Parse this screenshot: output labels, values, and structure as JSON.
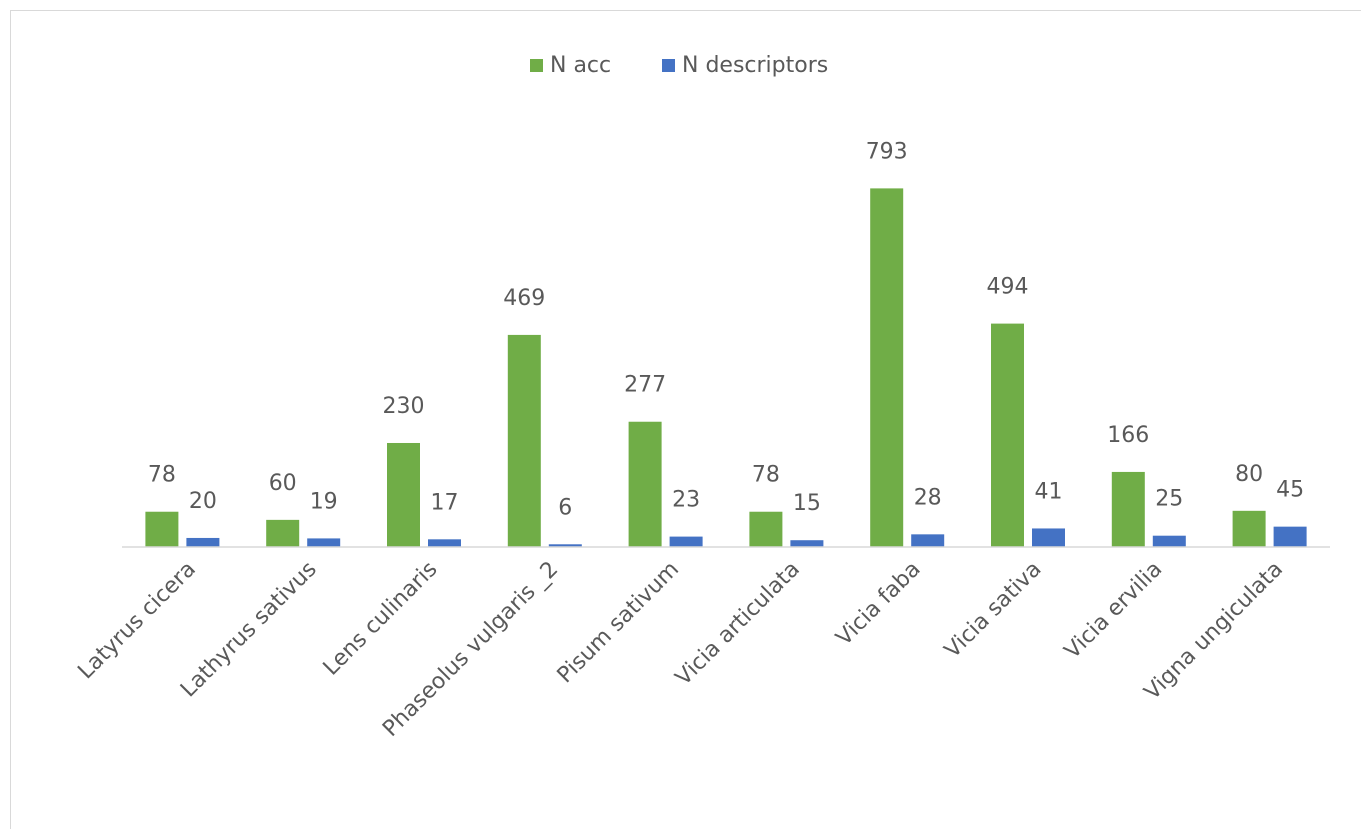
{
  "chart_data": {
    "type": "bar",
    "categories": [
      "Latyrus cicera",
      "Lathyrus sativus",
      "Lens culinaris",
      "Phaseolus vulgaris _2",
      "Pisum sativum",
      "Vicia articulata",
      "Vicia faba",
      "Vicia sativa",
      "Vicia ervilia",
      "Vigna ungiculata"
    ],
    "series": [
      {
        "name": "N acc",
        "color": "#70ad47",
        "values": [
          78,
          60,
          230,
          469,
          277,
          78,
          793,
          494,
          166,
          80
        ]
      },
      {
        "name": "N descriptors",
        "color": "#4472c4",
        "values": [
          20,
          19,
          17,
          6,
          23,
          15,
          28,
          41,
          25,
          45
        ]
      }
    ],
    "ylim": [
      0,
      900
    ],
    "legend": "top"
  }
}
